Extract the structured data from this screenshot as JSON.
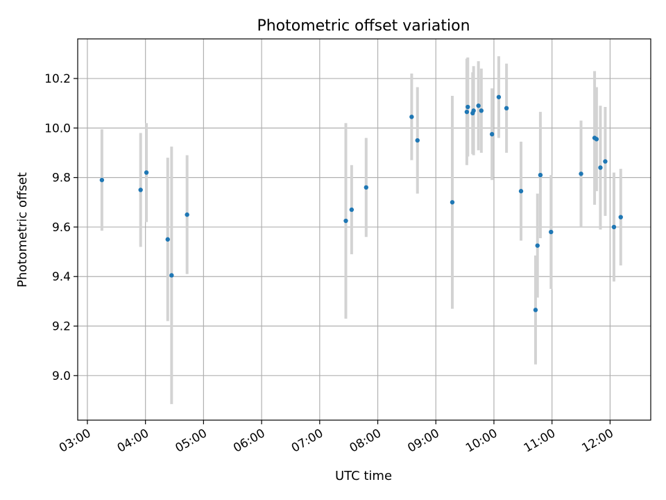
{
  "chart_data": {
    "type": "scatter",
    "title": "Photometric offset variation",
    "xlabel": "UTC time",
    "ylabel": "Photometric offset",
    "x_ticks": [
      "03:00",
      "04:00",
      "05:00",
      "06:00",
      "07:00",
      "08:00",
      "09:00",
      "10:00",
      "11:00",
      "12:00"
    ],
    "y_ticks": [
      "9.0",
      "9.2",
      "9.4",
      "9.6",
      "9.8",
      "10.0",
      "10.2"
    ],
    "xlim": [
      "02:50",
      "12:42"
    ],
    "ylim": [
      8.82,
      10.36
    ],
    "grid": true,
    "colors": {
      "point": "#1f77b4",
      "errorbar": "#d3d3d3",
      "grid": "#b0b0b0",
      "axis": "#000000"
    },
    "points": [
      {
        "x": "03:15",
        "y": 9.79,
        "err": 0.205
      },
      {
        "x": "03:55",
        "y": 9.75,
        "err": 0.23
      },
      {
        "x": "04:01",
        "y": 9.82,
        "err": 0.2
      },
      {
        "x": "04:23",
        "y": 9.55,
        "err": 0.33
      },
      {
        "x": "04:27",
        "y": 9.405,
        "err": 0.52
      },
      {
        "x": "04:43",
        "y": 9.65,
        "err": 0.24
      },
      {
        "x": "07:27",
        "y": 9.625,
        "err": 0.395
      },
      {
        "x": "07:33",
        "y": 9.67,
        "err": 0.18
      },
      {
        "x": "07:48",
        "y": 9.76,
        "err": 0.2
      },
      {
        "x": "08:35",
        "y": 10.045,
        "err": 0.175
      },
      {
        "x": "08:41",
        "y": 9.95,
        "err": 0.215
      },
      {
        "x": "09:17",
        "y": 9.7,
        "err": 0.43
      },
      {
        "x": "09:32",
        "y": 10.065,
        "err": 0.215
      },
      {
        "x": "09:33",
        "y": 10.085,
        "err": 0.2
      },
      {
        "x": "09:38",
        "y": 10.06,
        "err": 0.165
      },
      {
        "x": "09:39",
        "y": 10.07,
        "err": 0.18
      },
      {
        "x": "09:44",
        "y": 10.09,
        "err": 0.18
      },
      {
        "x": "09:47",
        "y": 10.07,
        "err": 0.17
      },
      {
        "x": "09:58",
        "y": 9.975,
        "err": 0.185
      },
      {
        "x": "10:05",
        "y": 10.125,
        "err": 0.165
      },
      {
        "x": "10:13",
        "y": 10.08,
        "err": 0.18
      },
      {
        "x": "10:28",
        "y": 9.745,
        "err": 0.2
      },
      {
        "x": "10:43",
        "y": 9.265,
        "err": 0.22
      },
      {
        "x": "10:45",
        "y": 9.525,
        "err": 0.21
      },
      {
        "x": "10:48",
        "y": 9.81,
        "err": 0.255
      },
      {
        "x": "10:59",
        "y": 9.58,
        "err": 0.23
      },
      {
        "x": "11:30",
        "y": 9.815,
        "err": 0.215
      },
      {
        "x": "11:44",
        "y": 9.96,
        "err": 0.27
      },
      {
        "x": "11:46",
        "y": 9.955,
        "err": 0.21
      },
      {
        "x": "11:50",
        "y": 9.84,
        "err": 0.25
      },
      {
        "x": "11:55",
        "y": 9.865,
        "err": 0.22
      },
      {
        "x": "12:04",
        "y": 9.6,
        "err": 0.22
      },
      {
        "x": "12:11",
        "y": 9.64,
        "err": 0.195
      }
    ]
  }
}
